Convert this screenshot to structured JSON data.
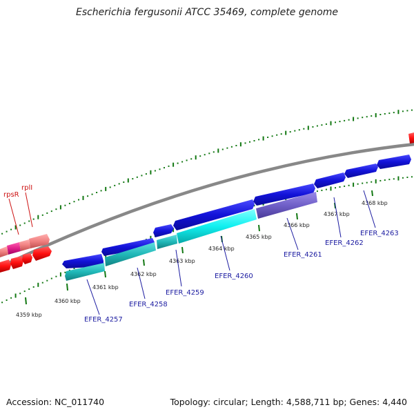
{
  "header": {
    "title": "Escherichia fergusonii ATCC 35469, complete genome"
  },
  "footer": {
    "accession": "Accession: NC_011740",
    "topology": "Topology: circular; Length: 4,588,711 bp; Genes: 4,440"
  },
  "colors": {
    "backbone": "#888888",
    "forward_gene": "#1212d8",
    "forward_light": "#2a2ae8",
    "forward_lavender": "#7060c8",
    "reverse_cyan": "#10f0f0",
    "reverse_teal": "#20c0c0",
    "red_gene": "#ff1010",
    "pink_gene": "#f08080",
    "magenta_gene": "#e0208a",
    "tick": "#117711",
    "label_blue": "#1a1aa0",
    "label_red": "#cc1111"
  },
  "scale_ticks": [
    "4359 kbp",
    "4360 kbp",
    "4361 kbp",
    "4362 kbp",
    "4363 kbp",
    "4364 kbp",
    "4365 kbp",
    "4366 kbp",
    "4367 kbp",
    "4368 kbp"
  ],
  "gene_labels": [
    "EFER_4257",
    "EFER_4258",
    "EFER_4259",
    "EFER_4260",
    "EFER_4261",
    "EFER_4262",
    "EFER_4263"
  ],
  "red_labels": [
    "rpsR",
    "rplI"
  ]
}
